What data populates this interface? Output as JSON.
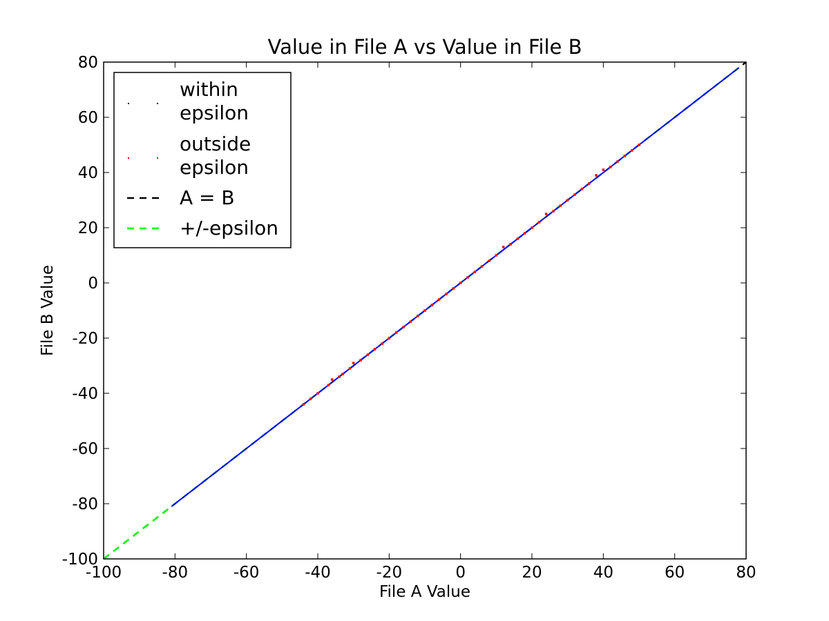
{
  "chart_data": {
    "type": "scatter",
    "title": "Value in File A vs Value in File B",
    "xlabel": "File A Value",
    "ylabel": "File B Value",
    "xlim": [
      -100,
      80
    ],
    "ylim": [
      -100,
      80
    ],
    "xticks": [
      -100,
      -80,
      -60,
      -40,
      -20,
      0,
      20,
      40,
      60,
      80
    ],
    "yticks": [
      -100,
      -80,
      -60,
      -40,
      -20,
      0,
      20,
      40,
      60,
      80
    ],
    "grid": false,
    "legend_position": "top-left",
    "series": [
      {
        "name": "within epsilon",
        "kind": "points",
        "color": "#000000",
        "x": [
          -80,
          -70,
          -60,
          -50,
          -42,
          -36,
          -30,
          -24,
          -18,
          -12,
          -6,
          0,
          6,
          12,
          18,
          24,
          30,
          36,
          42,
          48,
          50,
          60,
          70,
          77
        ],
        "y": [
          -80,
          -70,
          -60,
          -50,
          -42,
          -36,
          -30,
          -24,
          -18,
          -12,
          -6,
          0,
          6,
          12,
          18,
          24,
          30,
          36,
          42,
          48,
          50,
          60,
          70,
          77
        ]
      },
      {
        "name": "outside epsilon",
        "kind": "points",
        "color": "#ff0000",
        "x": [
          -44,
          -42,
          -40,
          -37,
          -36,
          -34,
          -33,
          -31,
          -30,
          -28,
          -26,
          -24,
          -22,
          -20,
          -18,
          -16,
          -14,
          -12,
          -10,
          -8,
          -6,
          -4,
          -2,
          0,
          2,
          4,
          6,
          8,
          10,
          12,
          14,
          16,
          18,
          20,
          22,
          24,
          26,
          28,
          30,
          32,
          34,
          36,
          38,
          40,
          42,
          44,
          46,
          48,
          50
        ],
        "y": [
          -44,
          -42,
          -40,
          -37,
          -35,
          -34,
          -33,
          -31,
          -29,
          -28,
          -26,
          -24,
          -22,
          -20,
          -18,
          -16,
          -14,
          -12,
          -10,
          -8,
          -6,
          -4,
          -2,
          0,
          2,
          4,
          6,
          8,
          10,
          13,
          14,
          16,
          18,
          20,
          22,
          25,
          26,
          28,
          30,
          32,
          34,
          36,
          39,
          41,
          42,
          44,
          46,
          48,
          50
        ]
      },
      {
        "name": "A = B",
        "kind": "line",
        "color": "#000000",
        "x": [
          -100,
          80
        ],
        "y": [
          -100,
          80
        ]
      },
      {
        "name": "+/-epsilon",
        "kind": "line",
        "color": "#00ff00",
        "x": [
          -100,
          78
        ],
        "y": [
          -100,
          78
        ]
      },
      {
        "kind": "line",
        "color": "#0000ff",
        "x": [
          -81,
          78
        ],
        "y": [
          -81,
          78
        ]
      }
    ],
    "legend": [
      {
        "label_lines": [
          "within",
          "epsilon"
        ],
        "kind": "points",
        "color": "#000000"
      },
      {
        "label_lines": [
          "outside",
          "epsilon"
        ],
        "kind": "points",
        "color": "#ff0000"
      },
      {
        "label_lines": [
          "A = B"
        ],
        "kind": "dashed-line",
        "color": "#000000"
      },
      {
        "label_lines": [
          "+/-epsilon"
        ],
        "kind": "dashed-line",
        "color": "#00ff00"
      }
    ]
  }
}
